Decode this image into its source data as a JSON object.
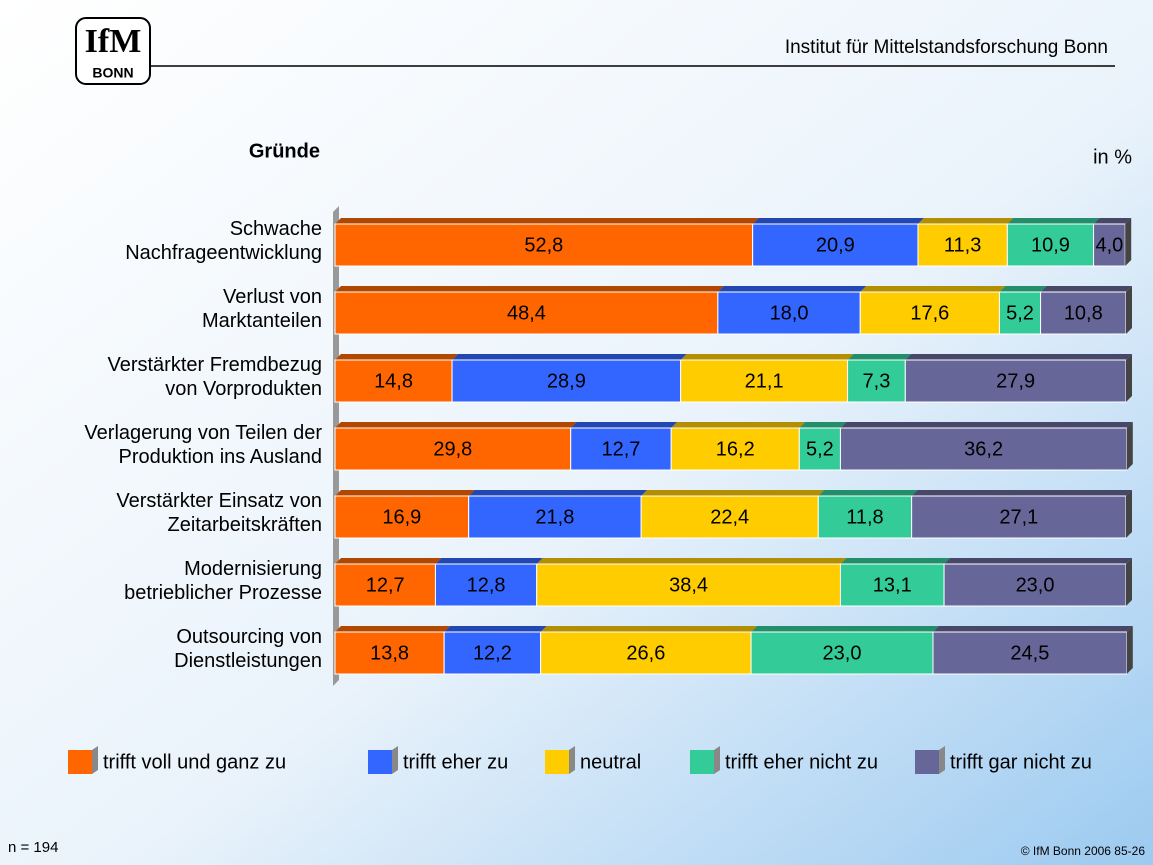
{
  "header": {
    "logo": "IfM",
    "logo_sub": "BONN",
    "institute": "Institut für Mittelstandsforschung Bonn"
  },
  "chart_data": {
    "type": "stacked-bar-horizontal",
    "title": "Gründe",
    "unit_label": "in %",
    "categories": [
      "Schwache\nNachfrageentwicklung",
      "Verlust von\nMarktanteilen",
      "Verstärkter Fremdbezug\nvon Vorprodukten",
      "Verlagerung von Teilen der\nProduktion ins Ausland",
      "Verstärkter Einsatz von\nZeitarbeitskräften",
      "Modernisierung\nbetrieblicher Prozesse",
      "Outsourcing von\nDienstleistungen"
    ],
    "xlim": [
      0,
      100
    ],
    "series": [
      {
        "name": "trifft voll und ganz zu",
        "color": "#ff6600",
        "values": [
          52.8,
          48.4,
          14.8,
          29.8,
          16.9,
          12.7,
          13.8
        ],
        "value_labels": [
          "52,8",
          "48,4",
          "14,8",
          "29,8",
          "16,9",
          "12,7",
          "13,8"
        ]
      },
      {
        "name": "trifft eher zu",
        "color": "#3366ff",
        "values": [
          20.9,
          18.0,
          28.9,
          12.7,
          21.8,
          12.8,
          12.2
        ],
        "value_labels": [
          "20,9",
          "18,0",
          "28,9",
          "12,7",
          "21,8",
          "12,8",
          "12,2"
        ]
      },
      {
        "name": "neutral",
        "color": "#ffcc00",
        "values": [
          11.3,
          17.6,
          21.1,
          16.2,
          22.4,
          38.4,
          26.6
        ],
        "value_labels": [
          "11,3",
          "17,6",
          "21,1",
          "16,2",
          "22,4",
          "38,4",
          "26,6"
        ]
      },
      {
        "name": "trifft eher nicht zu",
        "color": "#33cc99",
        "values": [
          10.9,
          5.2,
          7.3,
          5.2,
          11.8,
          13.1,
          23.0
        ],
        "value_labels": [
          "10,9",
          "5,2",
          "7,3",
          "5,2",
          "11,8",
          "13,1",
          "23,0"
        ]
      },
      {
        "name": "trifft gar nicht zu",
        "color": "#666699",
        "values": [
          4.0,
          10.8,
          27.9,
          36.2,
          27.1,
          23.0,
          24.5
        ],
        "value_labels": [
          "4,0",
          "10,8",
          "27,9",
          "36,2",
          "27,1",
          "23,0",
          "24,5"
        ]
      }
    ]
  },
  "footer": {
    "n": "n = 194",
    "copyright": "© IfM Bonn 2006  85-26"
  }
}
